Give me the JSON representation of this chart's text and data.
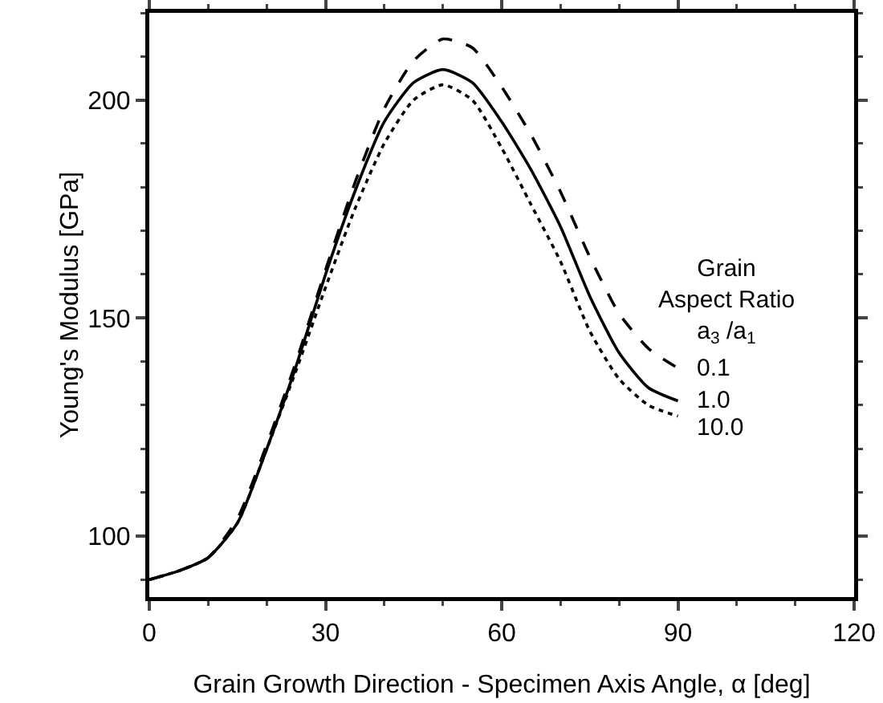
{
  "chart_data": {
    "type": "line",
    "xlabel": "Grain Growth Direction - Specimen Axis Angle, α [deg]",
    "ylabel": "Young's Modulus [GPa]",
    "legend_title": "Grain\nAspect Ratio\na$_{3}$ /a$_{1}$",
    "x": [
      0,
      5,
      10,
      15,
      20,
      25,
      30,
      35,
      40,
      45,
      50,
      55,
      60,
      65,
      70,
      75,
      80,
      85,
      90
    ],
    "series": [
      {
        "name": "0.1",
        "color": "#000000",
        "line_style": "dashed",
        "values": [
          90,
          92,
          95,
          104,
          121,
          140,
          161,
          181,
          198,
          209,
          214,
          212,
          203,
          192,
          179,
          164,
          151,
          143,
          138.5
        ]
      },
      {
        "name": "1.0",
        "color": "#000000",
        "line_style": "solid",
        "values": [
          90,
          92,
          95,
          103,
          120,
          139,
          160,
          179,
          195,
          204,
          207,
          204,
          195,
          184,
          171,
          155,
          142,
          134,
          131
        ]
      },
      {
        "name": "10.0",
        "color": "#000000",
        "line_style": "dotted",
        "values": [
          90,
          92,
          95,
          103,
          120,
          138,
          157,
          175,
          190,
          200,
          203.5,
          200,
          189,
          176,
          163,
          147,
          136,
          130,
          127.5
        ]
      }
    ],
    "xlim": [
      0,
      120
    ],
    "xticks": [
      0,
      30,
      60,
      90,
      120
    ],
    "ylim": [
      86,
      220
    ],
    "yticks": [
      100,
      150,
      200
    ],
    "grid": false,
    "legend": false,
    "marker": "none"
  }
}
